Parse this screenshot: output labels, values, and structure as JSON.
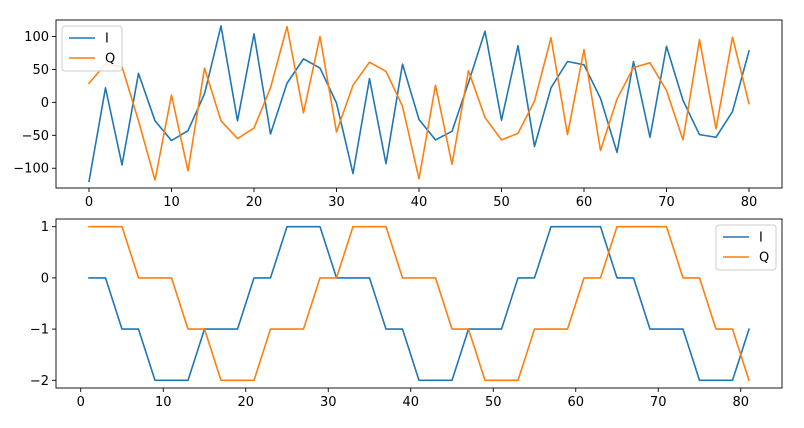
{
  "chart_data": [
    {
      "type": "line",
      "legend": "top-left",
      "grid": false,
      "xlim": [
        -4,
        84
      ],
      "ylim": [
        -130,
        125
      ],
      "xticks": [
        0,
        10,
        20,
        30,
        40,
        50,
        60,
        70,
        80
      ],
      "yticks": [
        -100,
        -50,
        0,
        50,
        100
      ],
      "series": [
        {
          "name": "I",
          "color": "#1f77b4",
          "x": [
            0,
            2,
            4,
            6,
            8,
            10,
            12,
            14,
            16,
            18,
            20,
            22,
            24,
            26,
            28,
            30,
            32,
            34,
            36,
            38,
            40,
            42,
            44,
            46,
            48,
            50,
            52,
            54,
            56,
            58,
            60,
            62,
            64,
            66,
            68,
            70,
            72,
            74,
            76,
            78,
            80
          ],
          "y": [
            -120,
            22,
            -95,
            44,
            -28,
            -58,
            -43,
            13,
            116,
            -28,
            104,
            -48,
            29,
            66,
            52,
            -1,
            -108,
            36,
            -93,
            58,
            -26,
            -57,
            -44,
            30,
            108,
            -27,
            86,
            -67,
            22,
            62,
            57,
            6,
            -76,
            62,
            -53,
            85,
            3,
            -49,
            -53,
            -14,
            78
          ]
        },
        {
          "name": "Q",
          "color": "#ff7f0e",
          "x": [
            0,
            2,
            4,
            6,
            8,
            10,
            12,
            14,
            16,
            18,
            20,
            22,
            24,
            26,
            28,
            30,
            32,
            34,
            36,
            38,
            40,
            42,
            44,
            46,
            48,
            50,
            52,
            54,
            56,
            58,
            60,
            62,
            64,
            66,
            68,
            70,
            72,
            74,
            76,
            78,
            80
          ],
          "y": [
            29,
            58,
            54,
            -28,
            -118,
            11,
            -104,
            52,
            -28,
            -55,
            -39,
            22,
            115,
            -16,
            100,
            -45,
            26,
            61,
            47,
            -6,
            -116,
            26,
            -94,
            48,
            -23,
            -57,
            -47,
            2,
            98,
            -49,
            80,
            -73,
            5,
            53,
            60,
            18,
            -57,
            95,
            -40,
            99,
            -2
          ]
        }
      ]
    },
    {
      "type": "line",
      "legend": "top-right",
      "grid": false,
      "xlim": [
        -3,
        85
      ],
      "ylim": [
        -2.15,
        1.15
      ],
      "xticks": [
        0,
        10,
        20,
        30,
        40,
        50,
        60,
        70,
        80
      ],
      "yticks": [
        -2,
        -1,
        0,
        1
      ],
      "ytick_labels": [
        "−2",
        "−1",
        "0",
        "1"
      ],
      "series": [
        {
          "name": "I",
          "color": "#1f77b4",
          "x": [
            1,
            3,
            5,
            7,
            9,
            11,
            13,
            15,
            17,
            19,
            21,
            23,
            25,
            27,
            29,
            31,
            33,
            35,
            37,
            39,
            41,
            43,
            45,
            47,
            49,
            51,
            53,
            55,
            57,
            59,
            61,
            63,
            65,
            67,
            69,
            71,
            73,
            75,
            77,
            79,
            81
          ],
          "y": [
            0,
            0,
            -1,
            -1,
            -2,
            -2,
            -2,
            -1,
            -1,
            -1,
            0,
            0,
            1,
            1,
            1,
            0,
            0,
            0,
            -1,
            -1,
            -2,
            -2,
            -2,
            -1,
            -1,
            -1,
            0,
            0,
            1,
            1,
            1,
            1,
            0,
            0,
            -1,
            -1,
            -1,
            -2,
            -2,
            -2,
            -1
          ]
        },
        {
          "name": "Q",
          "color": "#ff7f0e",
          "x": [
            1,
            3,
            5,
            7,
            9,
            11,
            13,
            15,
            17,
            19,
            21,
            23,
            25,
            27,
            29,
            31,
            33,
            35,
            37,
            39,
            41,
            43,
            45,
            47,
            49,
            51,
            53,
            55,
            57,
            59,
            61,
            63,
            65,
            67,
            69,
            71,
            73,
            75,
            77,
            79,
            81
          ],
          "y": [
            1,
            1,
            1,
            0,
            0,
            0,
            -1,
            -1,
            -2,
            -2,
            -2,
            -1,
            -1,
            -1,
            0,
            0,
            1,
            1,
            1,
            0,
            0,
            0,
            -1,
            -1,
            -2,
            -2,
            -2,
            -1,
            -1,
            -1,
            0,
            0,
            1,
            1,
            1,
            1,
            0,
            0,
            -1,
            -1,
            -2
          ]
        }
      ]
    }
  ]
}
